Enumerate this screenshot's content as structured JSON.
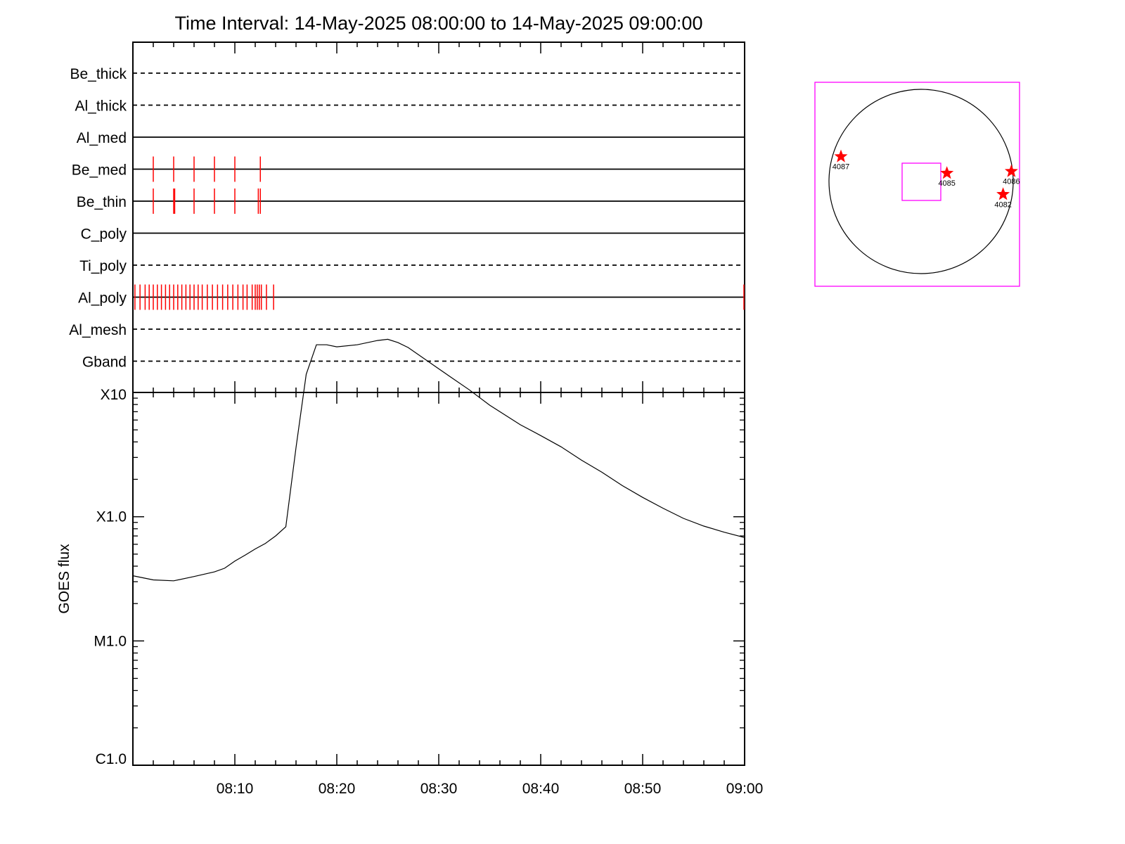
{
  "title": "Time Interval: 14-May-2025 08:00:00 to 14-May-2025 09:00:00",
  "colors": {
    "marks": "#ff0000",
    "frame": "#000000",
    "fov": "#ff00ff"
  },
  "chart_data": [
    {
      "type": "line",
      "panel": "filter-timeline",
      "x_range": [
        "08:00",
        "09:00"
      ],
      "rows": [
        {
          "label": "Be_thick",
          "style": "dashed",
          "marks": []
        },
        {
          "label": "Al_thick",
          "style": "dashed",
          "marks": []
        },
        {
          "label": "Al_med",
          "style": "solid",
          "marks": []
        },
        {
          "label": "Be_med",
          "style": "solid",
          "marks": [
            "08:02",
            "08:04",
            "08:06",
            "08:08",
            "08:10",
            "08:12.5"
          ]
        },
        {
          "label": "Be_thin",
          "style": "solid",
          "marks": [
            "08:02",
            "08:04",
            "08:04.1",
            "08:06",
            "08:08",
            "08:10",
            "08:12.3",
            "08:12.5"
          ]
        },
        {
          "label": "C_poly",
          "style": "solid",
          "marks": []
        },
        {
          "label": "Ti_poly",
          "style": "dashed",
          "marks": []
        },
        {
          "label": "Al_poly",
          "style": "solid",
          "marks": [
            "08:00.2",
            "08:00.7",
            "08:01.2",
            "08:01.6",
            "08:02",
            "08:02.4",
            "08:02.8",
            "08:03.2",
            "08:03.6",
            "08:04",
            "08:04.4",
            "08:04.8",
            "08:05.2",
            "08:05.6",
            "08:06",
            "08:06.4",
            "08:06.8",
            "08:07.3",
            "08:07.8",
            "08:08.3",
            "08:08.8",
            "08:09.3",
            "08:09.8",
            "08:10.3",
            "08:10.8",
            "08:11.2",
            "08:11.7",
            "08:12",
            "08:12.2",
            "08:12.4",
            "08:12.6",
            "08:13.1",
            "08:13.8",
            "09:00"
          ]
        },
        {
          "label": "Al_mesh",
          "style": "dashed",
          "marks": []
        },
        {
          "label": "Gband",
          "style": "dashed",
          "marks": []
        }
      ]
    },
    {
      "type": "line",
      "panel": "goes-flux",
      "ylabel": "GOES flux",
      "y_scale": "log",
      "yticks": [
        "C1.0",
        "M1.0",
        "X1.0",
        "X10"
      ],
      "ylim": [
        "C1.0",
        "X10"
      ],
      "x_range": [
        "08:00",
        "09:00"
      ],
      "xticks": [
        "08:10",
        "08:20",
        "08:30",
        "08:40",
        "08:50",
        "09:00"
      ],
      "series": [
        {
          "points": [
            [
              "08:00",
              3.35e-05
            ],
            [
              "08:02",
              3.1e-05
            ],
            [
              "08:04",
              3.05e-05
            ],
            [
              "08:06",
              3.3e-05
            ],
            [
              "08:08",
              3.6e-05
            ],
            [
              "08:09",
              3.85e-05
            ],
            [
              "08:10",
              4.4e-05
            ],
            [
              "08:11",
              4.9e-05
            ],
            [
              "08:12",
              5.5e-05
            ],
            [
              "08:13",
              6.1e-05
            ],
            [
              "08:14",
              7e-05
            ],
            [
              "08:15",
              8.3e-05
            ],
            [
              "08:16",
              0.00036
            ],
            [
              "08:17",
              0.0014
            ],
            [
              "08:18",
              0.00242
            ],
            [
              "08:19",
              0.00242
            ],
            [
              "08:20",
              0.00233
            ],
            [
              "08:22",
              0.00242
            ],
            [
              "08:24",
              0.00262
            ],
            [
              "08:25",
              0.00268
            ],
            [
              "08:26",
              0.00252
            ],
            [
              "08:27",
              0.0023
            ],
            [
              "08:30",
              0.00155
            ],
            [
              "08:33",
              0.00105
            ],
            [
              "08:35",
              0.00079
            ],
            [
              "08:38",
              0.00055
            ],
            [
              "08:40",
              0.00045
            ],
            [
              "08:42",
              0.000365
            ],
            [
              "08:44",
              0.000285
            ],
            [
              "08:46",
              0.000228
            ],
            [
              "08:48",
              0.000178
            ],
            [
              "08:50",
              0.000143
            ],
            [
              "08:52",
              0.000117
            ],
            [
              "08:54",
              9.7e-05
            ],
            [
              "08:56",
              8.4e-05
            ],
            [
              "08:58",
              7.5e-05
            ],
            [
              "09:00",
              6.8e-05
            ]
          ]
        }
      ]
    }
  ],
  "solar_map": {
    "regions": [
      {
        "label": "4087",
        "lon": -0.87,
        "lat": 0.27
      },
      {
        "label": "4085",
        "lon": 0.28,
        "lat": 0.09
      },
      {
        "label": "4086",
        "lon": 0.98,
        "lat": 0.11
      },
      {
        "label": "4082",
        "lon": 0.89,
        "lat": -0.14
      }
    ]
  }
}
